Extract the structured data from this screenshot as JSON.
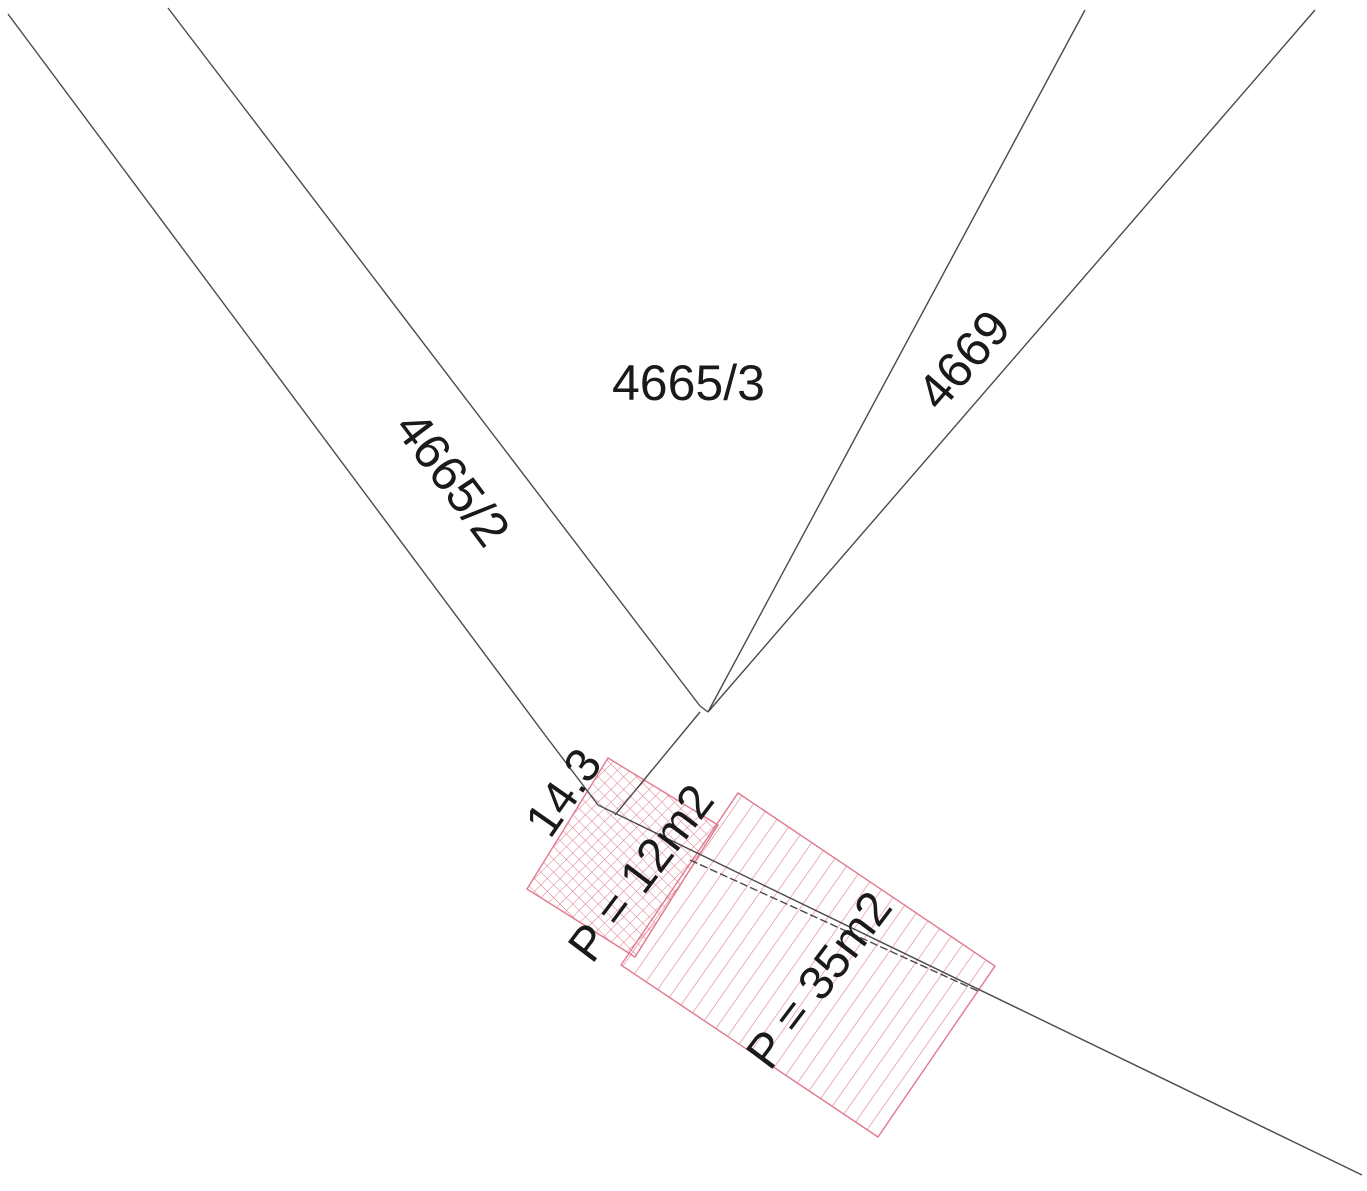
{
  "parcels": {
    "center": "4665/3",
    "left": "4665/2",
    "right": "4669"
  },
  "annotations": {
    "dimension": "14.3",
    "area_small": "P = 12m2",
    "area_large": "P = 35m2"
  },
  "colors": {
    "boundary_line": "#4a4a4a",
    "hatch": "#e07a8e",
    "label_text": "#1a1a1a"
  }
}
